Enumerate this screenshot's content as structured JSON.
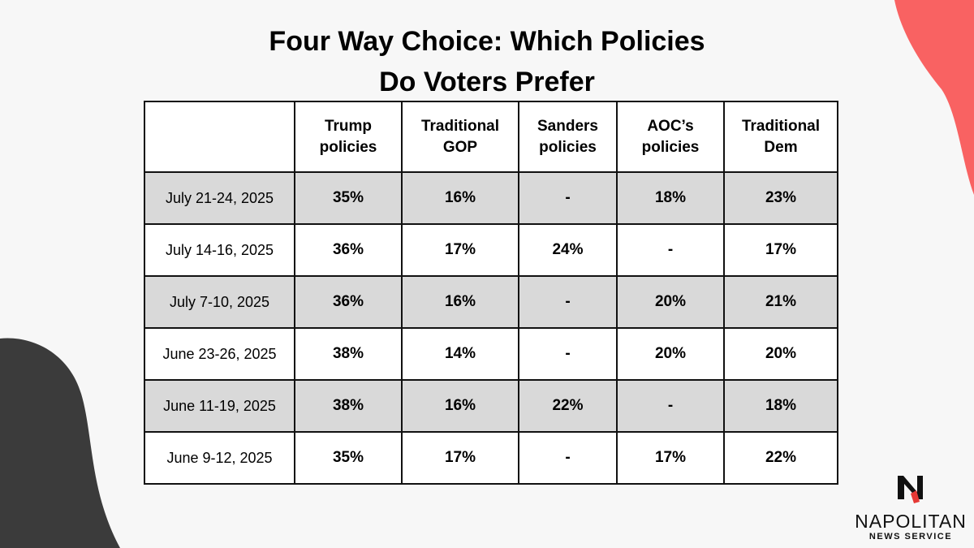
{
  "colors": {
    "accent_red": "#f96262",
    "dark_shape": "#3b3b3b",
    "shaded_row": "#d9d9d9",
    "background": "#f7f7f7"
  },
  "chart_data": {
    "type": "table",
    "title": [
      "Four Way Choice: Which Policies",
      "Do Voters Prefer"
    ],
    "columns": [
      [
        "Trump",
        "policies"
      ],
      [
        "Traditional",
        "GOP"
      ],
      [
        "Sanders",
        "policies"
      ],
      [
        "AOC’s",
        "policies"
      ],
      [
        "Traditional",
        "Dem"
      ]
    ],
    "rows": [
      {
        "date": "July 21-24, 2025",
        "values": [
          "35%",
          "16%",
          "-",
          "18%",
          "23%"
        ]
      },
      {
        "date": "July 14-16, 2025",
        "values": [
          "36%",
          "17%",
          "24%",
          "-",
          "17%"
        ]
      },
      {
        "date": "July 7-10, 2025",
        "values": [
          "36%",
          "16%",
          "-",
          "20%",
          "21%"
        ]
      },
      {
        "date": "June 23-26, 2025",
        "values": [
          "38%",
          "14%",
          "-",
          "20%",
          "20%"
        ]
      },
      {
        "date": "June 11-19, 2025",
        "values": [
          "38%",
          "16%",
          "22%",
          "-",
          "18%"
        ]
      },
      {
        "date": "June 9-12, 2025",
        "values": [
          "35%",
          "17%",
          "-",
          "17%",
          "22%"
        ]
      }
    ]
  },
  "logo": {
    "brand": "NAPOLITAN",
    "sub": "NEWS SERVICE",
    "icon": "napolitan-n-logo-icon"
  }
}
